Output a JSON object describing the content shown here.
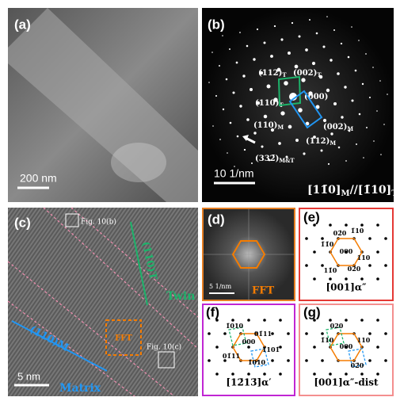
{
  "panels": {
    "a": {
      "label": "(a)",
      "scale_bar": "200 nm"
    },
    "b": {
      "label": "(b)",
      "scale_bar": "10 1/nm",
      "zone_axis": [
        {
          "text": "[11̄0]",
          "sub": "M"
        },
        {
          "text": "//[1̄10]",
          "sub": "T"
        }
      ],
      "spots": [
        {
          "text": "(112)",
          "sub": "T"
        },
        {
          "text": "(002)",
          "sub": "T"
        },
        {
          "text": "(110)",
          "sub": "T"
        },
        {
          "text": "(000)",
          "sub": ""
        },
        {
          "text": "(110)",
          "sub": "M"
        },
        {
          "text": "(002)",
          "sub": "M"
        },
        {
          "text": "(112)",
          "sub": "M"
        },
        {
          "text": "(332̄)",
          "sub": "M&T"
        }
      ]
    },
    "c": {
      "label": "(c)",
      "box_top": "Fig. 10(b)",
      "box_bottom": "Fig. 10(c)",
      "twin_plane": "(110)T",
      "twin": "Twin",
      "matrix_plane": "(110)M",
      "matrix": "Matrix",
      "fft": "FFT",
      "scale_bar": "5 nm"
    },
    "d": {
      "label": "(d)",
      "scale_bar": "5 1/nm",
      "fft": "FFT"
    },
    "e": {
      "label": "(e)",
      "spots": [
        "02̄0",
        "1̄10",
        "1̄1̄0",
        "000",
        "110",
        "11̄0",
        "020"
      ],
      "caption": "[001]α″"
    },
    "f": {
      "label": "(f)",
      "spots": [
        "1̄010",
        "01̄11",
        "000",
        "1̄101̄",
        "01̄11",
        "1̄010"
      ],
      "caption": "[12̄13̄]α′"
    },
    "g": {
      "label": "(g)",
      "spots": [
        "020",
        "1̄10",
        "000",
        "110",
        "02̄0"
      ],
      "caption": "[001]α″-dist"
    }
  }
}
